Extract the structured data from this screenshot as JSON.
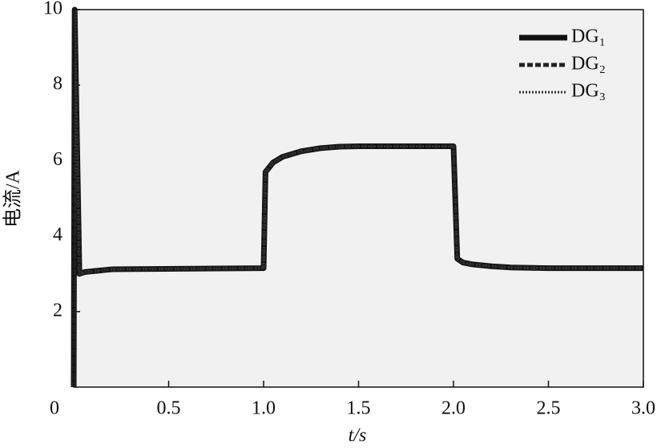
{
  "chart_data": {
    "type": "line",
    "x_label": "t/s",
    "y_label": "电流/A",
    "x": [
      0,
      0.005,
      0.03,
      0.06,
      0.2,
      0.99,
      1.0,
      1.01,
      1.05,
      1.1,
      1.2,
      1.3,
      1.4,
      1.5,
      1.99,
      2.0,
      2.02,
      2.05,
      2.1,
      2.2,
      2.3,
      2.5,
      3.0
    ],
    "series": [
      {
        "name": "DG₁",
        "color": "#111111",
        "style": "solid",
        "values": [
          0,
          10,
          3.0,
          3.05,
          3.12,
          3.15,
          3.15,
          5.7,
          5.95,
          6.1,
          6.25,
          6.33,
          6.37,
          6.38,
          6.38,
          6.38,
          3.4,
          3.3,
          3.25,
          3.2,
          3.17,
          3.15,
          3.15
        ]
      },
      {
        "name": "DG₂",
        "color": "#222222",
        "style": "dashed",
        "values": [
          0,
          10,
          3.0,
          3.05,
          3.12,
          3.15,
          3.15,
          5.7,
          5.95,
          6.1,
          6.25,
          6.33,
          6.37,
          6.38,
          6.38,
          6.38,
          3.4,
          3.3,
          3.25,
          3.2,
          3.17,
          3.15,
          3.15
        ]
      },
      {
        "name": "DG₃",
        "color": "#333333",
        "style": "dotted",
        "values": [
          0,
          10,
          3.0,
          3.05,
          3.12,
          3.15,
          3.15,
          5.7,
          5.95,
          6.1,
          6.25,
          6.33,
          6.37,
          6.38,
          6.38,
          6.38,
          3.4,
          3.3,
          3.25,
          3.2,
          3.17,
          3.15,
          3.15
        ]
      }
    ],
    "xlim": [
      0,
      3
    ],
    "ylim": [
      0,
      10
    ],
    "xticks": [
      0,
      0.5,
      {
        "value": 1,
        "label": "1.0"
      },
      1.5,
      {
        "value": 2,
        "label": "2.0"
      },
      2.5,
      {
        "value": 3,
        "label": "3.0"
      }
    ],
    "yticks": [
      2,
      4,
      6,
      8,
      10
    ],
    "legend": "top-right",
    "background": "#f1f1f1"
  }
}
